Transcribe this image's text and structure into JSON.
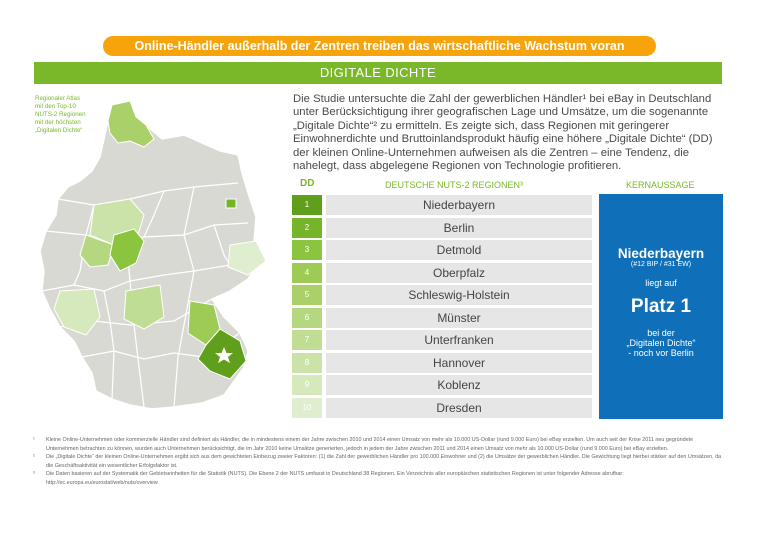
{
  "banner": "Online-Händler außerhalb der Zentren treiben das wirtschaftliche Wachstum voran",
  "section_title": "DIGITALE DICHTE",
  "map_caption": [
    "Regionaler Atlas",
    "mit den Top-10",
    "NUTS-2 Regionen",
    "mit der höchsten",
    "„Digitalen Dichte“"
  ],
  "intro": "Die Studie untersuchte die Zahl der gewerblichen Händler¹ bei eBay in Deutschland unter Berücksichtigung ihrer geografischen Lage und Umsätze, um die sogenannte „Digitale Dichte“² zu ermitteln. Es zeigte sich, dass Regionen mit geringerer Einwohnerdichte und Bruttoinlandsprodukt häufig eine höhere „Digitale Dichte“ (DD) der kleinen Online-Unternehmen aufweisen als die Zentren – eine Tendenz, die nahelegt, dass abgelegene Regionen von Technologie profitieren.",
  "table": {
    "head_dd": "DD",
    "head_region": "DEUTSCHE NUTS-2 REGIONEN³",
    "head_key": "KERNAUSSAGE",
    "rows": [
      {
        "rank": "1",
        "region": "Niederbayern",
        "color": "#5f9f1c"
      },
      {
        "rank": "2",
        "region": "Berlin",
        "color": "#76b52a"
      },
      {
        "rank": "3",
        "region": "Detmold",
        "color": "#8bc53f"
      },
      {
        "rank": "4",
        "region": "Oberpfalz",
        "color": "#9ecb55"
      },
      {
        "rank": "5",
        "region": "Schleswig-Holstein",
        "color": "#aad06a"
      },
      {
        "rank": "6",
        "region": "Münster",
        "color": "#b5d77f"
      },
      {
        "rank": "7",
        "region": "Unterfranken",
        "color": "#c0dd94"
      },
      {
        "rank": "8",
        "region": "Hannover",
        "color": "#cbe3a9"
      },
      {
        "rank": "9",
        "region": "Koblenz",
        "color": "#d5e9bc"
      },
      {
        "rank": "10",
        "region": "Dresden",
        "color": "#dfeece"
      }
    ]
  },
  "key": {
    "name": "Niederbayern",
    "sub": "(#12 BIP / #31 EW)",
    "liegt": "liegt auf",
    "platz": "Platz 1",
    "bei_lines": [
      "bei der",
      "„Digitalen Dichte“",
      "- noch vor Berlin"
    ],
    "bg": "#0f6fb8"
  },
  "footnotes": [
    {
      "num": "¹",
      "text": "Kleine Online-Unternehmen oder kommerzielle Händler sind definiert als Händler, die in mindestens einem der Jahre zwischen 2010 und 2014 einen Umsatz von mehr als 10.000 US-Dollar (rund 9.000 Euro) bei eBay erzielten. Um auch seit der Krise 2011 neu gegründete Unternehmen betrachten zu können, wurden auch Unternehmen berücksichtigt, die im Jahr 2010 keine Umsätze generierten, jedoch in jedem der Jahre zwischen 2011 und 2014 einen Umsatz von mehr als 10.000 US-Dollar (rund 9.000 Euro) bei eBay erzielten."
    },
    {
      "num": "²",
      "text": "Die „Digitale Dichte“ der kleinen Online-Unternehmen ergibt sich aus dem gewichteten Einbezug zweier Faktoren: (1) die Zahl der gewerblichen Händler pro 100.000 Einwohner und (2) die Umsätze der gewerblichen Händler. Die Gewichtung liegt hierbei stärker auf den Umsätzen, da die Geschäftsaktivität ein wesentlicher Erfolgsfaktor ist."
    },
    {
      "num": "³",
      "text": "Die Daten basieren auf der Systematik der Gebietseinheiten für die Statistik (NUTS). Die Ebene 2 der NUTS umfasst in Deutschland 38 Regionen. Ein Verzeichnis aller europäischen statistischen Regionen ist unter folgender Adresse abrufbar: http://ec.europa.eu/eurostat/web/nuts/overview"
    }
  ],
  "colors": {
    "orange": "#f7a30c",
    "green": "#7ab829",
    "blue": "#0f6fb8",
    "map_gray": "#d9d9d4",
    "map_dark": "#5f9f1c"
  }
}
